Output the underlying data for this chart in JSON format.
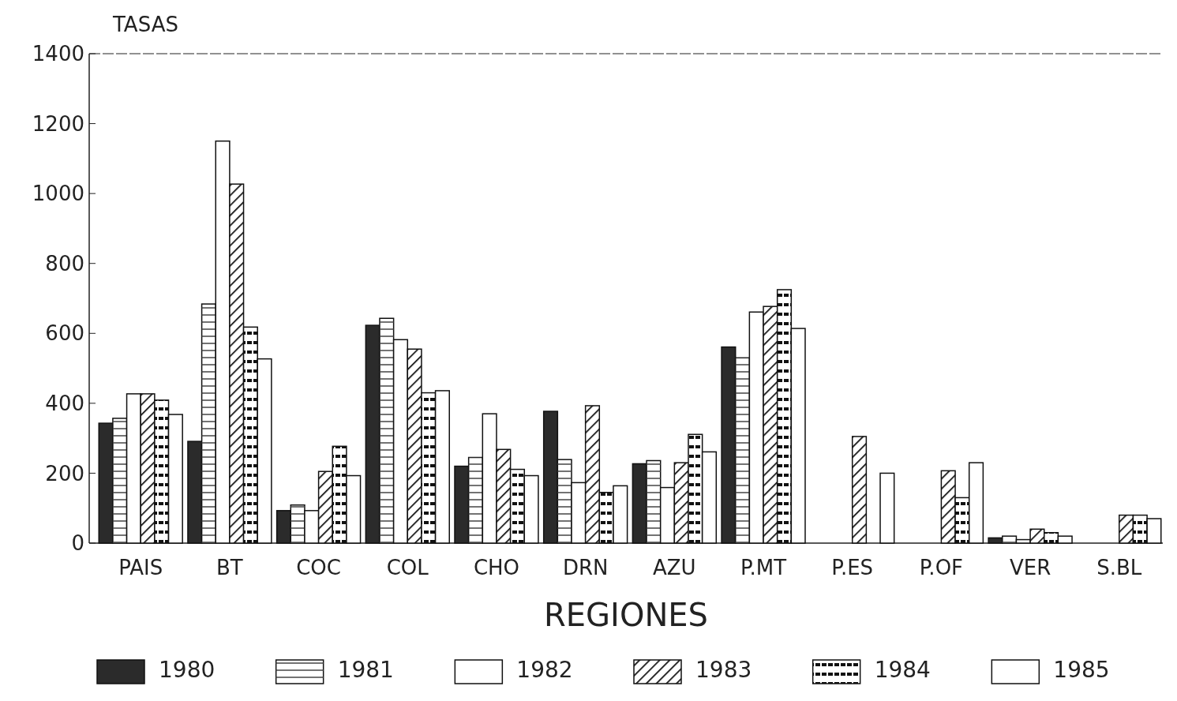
{
  "chart_data": {
    "type": "bar",
    "xlabel": "REGIONES",
    "ylabel": "TASAS",
    "categories": [
      "PAIS",
      "BT",
      "COC",
      "COL",
      "CHO",
      "DRN",
      "AZU",
      "P.MT",
      "P.ES",
      "P.OF",
      "VER",
      "S.BL"
    ],
    "series": [
      {
        "name": "1980",
        "color": "#2b2b2b",
        "values": [
          343,
          291,
          93,
          623,
          220,
          377,
          227,
          561,
          0,
          0,
          15,
          0
        ]
      },
      {
        "name": "1981",
        "color": "#ffffff",
        "values": [
          357,
          684,
          109,
          643,
          245,
          239,
          236,
          530,
          0,
          0,
          20,
          0
        ]
      },
      {
        "name": "1982",
        "color": "#ffffff",
        "values": [
          427,
          1150,
          93,
          582,
          370,
          173,
          159,
          661,
          0,
          0,
          10,
          0
        ]
      },
      {
        "name": "1983",
        "color": "#ffffff",
        "values": [
          427,
          1027,
          205,
          555,
          268,
          393,
          230,
          677,
          305,
          207,
          40,
          80
        ]
      },
      {
        "name": "1984",
        "color": "#ffffff",
        "values": [
          409,
          618,
          277,
          430,
          211,
          145,
          311,
          725,
          0,
          130,
          30,
          80
        ]
      },
      {
        "name": "1985",
        "color": "#ffffff",
        "values": [
          368,
          527,
          193,
          436,
          193,
          164,
          261,
          614,
          200,
          230,
          20,
          70
        ]
      }
    ],
    "ylim": [
      0,
      1400
    ],
    "yticks": [
      0,
      200,
      400,
      600,
      800,
      1000,
      1200,
      1400
    ],
    "grid": false,
    "legend": "bottom"
  }
}
